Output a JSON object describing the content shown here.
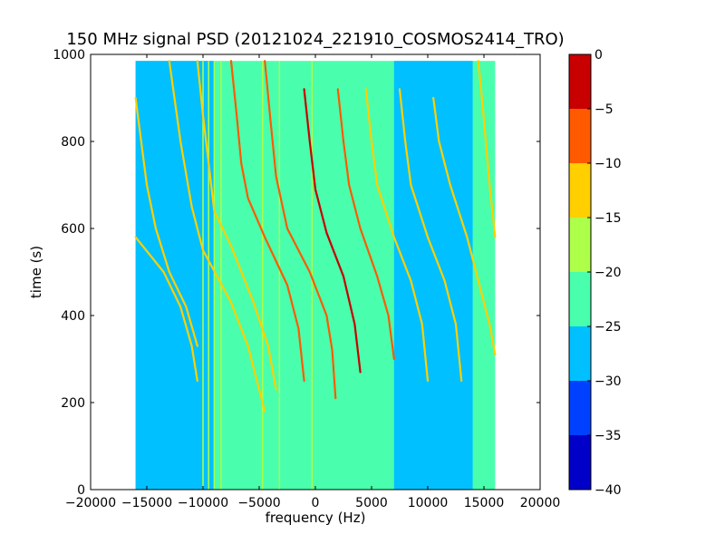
{
  "chart_data": {
    "type": "heatmap",
    "title": "150 MHz signal PSD (20121024_221910_COSMOS2414_TRO)",
    "xlabel": "frequency (Hz)",
    "ylabel": "time (s)",
    "xlim": [
      -20000,
      20000
    ],
    "ylim": [
      0,
      1000
    ],
    "x_ticks": [
      -20000,
      -15000,
      -10000,
      -5000,
      0,
      5000,
      10000,
      15000,
      20000
    ],
    "x_tick_labels": [
      "−20000",
      "−15000",
      "−10000",
      "−5000",
      "0",
      "5000",
      "10000",
      "15000",
      "20000"
    ],
    "y_ticks": [
      0,
      200,
      400,
      600,
      800,
      1000
    ],
    "y_tick_labels": [
      "0",
      "200",
      "400",
      "600",
      "800",
      "1000"
    ],
    "data_extent": {
      "x": [
        -16000,
        16000
      ],
      "y": [
        0,
        985
      ]
    },
    "colorbar": {
      "range": [
        -40,
        0
      ],
      "ticks": [
        0,
        -5,
        -10,
        -15,
        -20,
        -25,
        -30,
        -35,
        -40
      ],
      "tick_labels": [
        "0",
        "−5",
        "−10",
        "−15",
        "−20",
        "−25",
        "−30",
        "−35",
        "−40"
      ],
      "levels": [
        {
          "from": -40,
          "to": -35,
          "color": "#0000c8"
        },
        {
          "from": -35,
          "to": -30,
          "color": "#0040ff"
        },
        {
          "from": -30,
          "to": -25,
          "color": "#00c0ff"
        },
        {
          "from": -25,
          "to": -20,
          "color": "#49ffad"
        },
        {
          "from": -20,
          "to": -15,
          "color": "#adff49"
        },
        {
          "from": -15,
          "to": -10,
          "color": "#ffcf00"
        },
        {
          "from": -10,
          "to": -5,
          "color": "#ff5a00"
        },
        {
          "from": -5,
          "to": 0,
          "color": "#c80000"
        }
      ]
    },
    "background_level": -22.5,
    "low_power_bands": [
      {
        "x": [
          -16000,
          -9000
        ],
        "y": [
          0,
          985
        ],
        "level": -27.5
      },
      {
        "x": [
          7000,
          14000
        ],
        "y": [
          0,
          985
        ],
        "level": -27.5
      }
    ],
    "vertical_lines": [
      {
        "x": -10000,
        "y": [
          0,
          985
        ],
        "level": -17.5
      },
      {
        "x": -9500,
        "y": [
          0,
          985
        ],
        "level": -17.5
      },
      {
        "x": -9000,
        "y": [
          0,
          985
        ],
        "level": -17.5
      },
      {
        "x": -8400,
        "y": [
          0,
          985
        ],
        "level": -17.5
      },
      {
        "x": -4700,
        "y": [
          0,
          985
        ],
        "level": -17.5
      },
      {
        "x": -3200,
        "y": [
          0,
          985
        ],
        "level": -17.5
      },
      {
        "x": -300,
        "y": [
          0,
          985
        ],
        "level": -17.5
      }
    ],
    "doppler_traces": [
      {
        "points": [
          [
            -16000,
            580
          ],
          [
            -13500,
            500
          ],
          [
            -12000,
            420
          ],
          [
            -11000,
            330
          ],
          [
            -10500,
            250
          ]
        ],
        "level": -12.5
      },
      {
        "points": [
          [
            -16000,
            900
          ],
          [
            -15500,
            800
          ],
          [
            -15000,
            700
          ],
          [
            -14200,
            600
          ],
          [
            -13000,
            500
          ],
          [
            -11500,
            420
          ],
          [
            -10500,
            330
          ]
        ],
        "level": -12.5
      },
      {
        "points": [
          [
            -13000,
            1000
          ],
          [
            -12000,
            800
          ],
          [
            -11000,
            650
          ],
          [
            -10000,
            550
          ],
          [
            -7500,
            430
          ],
          [
            -6000,
            330
          ],
          [
            -4500,
            180
          ]
        ],
        "level": -12.5
      },
      {
        "points": [
          [
            -10500,
            990
          ],
          [
            -10000,
            860
          ],
          [
            -9500,
            750
          ],
          [
            -9000,
            640
          ],
          [
            -7500,
            560
          ],
          [
            -5500,
            430
          ],
          [
            -4200,
            330
          ],
          [
            -3500,
            230
          ]
        ],
        "level": -12.5
      },
      {
        "points": [
          [
            -7500,
            990
          ],
          [
            -7000,
            860
          ],
          [
            -6600,
            750
          ],
          [
            -6000,
            670
          ],
          [
            -4500,
            580
          ],
          [
            -2500,
            470
          ],
          [
            -1500,
            370
          ],
          [
            -1000,
            250
          ]
        ],
        "level": -7.5
      },
      {
        "points": [
          [
            -4500,
            1000
          ],
          [
            -4000,
            850
          ],
          [
            -3500,
            720
          ],
          [
            -2500,
            600
          ],
          [
            -500,
            500
          ],
          [
            1000,
            400
          ],
          [
            1500,
            320
          ],
          [
            1800,
            210
          ]
        ],
        "level": -7.5
      },
      {
        "points": [
          [
            -1000,
            920
          ],
          [
            -500,
            800
          ],
          [
            0,
            690
          ],
          [
            1000,
            590
          ],
          [
            2500,
            490
          ],
          [
            3500,
            380
          ],
          [
            4000,
            270
          ]
        ],
        "level": -2.5
      },
      {
        "points": [
          [
            2000,
            920
          ],
          [
            2500,
            800
          ],
          [
            3000,
            700
          ],
          [
            4000,
            600
          ],
          [
            5500,
            490
          ],
          [
            6500,
            400
          ],
          [
            7000,
            300
          ]
        ],
        "level": -7.5
      },
      {
        "points": [
          [
            4500,
            920
          ],
          [
            5000,
            800
          ],
          [
            5500,
            700
          ],
          [
            7000,
            580
          ],
          [
            8500,
            480
          ],
          [
            9500,
            380
          ],
          [
            10000,
            250
          ]
        ],
        "level": -12.5
      },
      {
        "points": [
          [
            7500,
            920
          ],
          [
            8000,
            800
          ],
          [
            8500,
            700
          ],
          [
            10000,
            580
          ],
          [
            11500,
            480
          ],
          [
            12500,
            380
          ],
          [
            13000,
            250
          ]
        ],
        "level": -12.5
      },
      {
        "points": [
          [
            10500,
            900
          ],
          [
            11000,
            800
          ],
          [
            12000,
            700
          ],
          [
            13500,
            580
          ],
          [
            14500,
            480
          ],
          [
            15500,
            380
          ],
          [
            16000,
            310
          ]
        ],
        "level": -12.5
      },
      {
        "points": [
          [
            14500,
            1000
          ],
          [
            15000,
            850
          ],
          [
            15500,
            700
          ],
          [
            16000,
            580
          ]
        ],
        "level": -12.5
      }
    ]
  }
}
